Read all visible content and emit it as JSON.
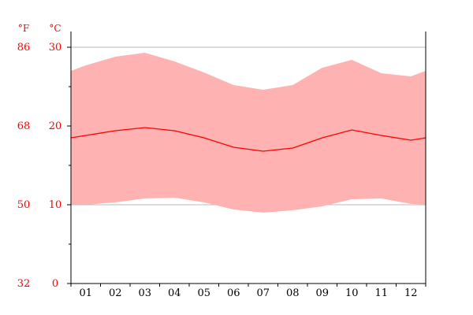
{
  "chart_data": {
    "type": "area",
    "x_categories": [
      "01",
      "02",
      "03",
      "04",
      "05",
      "06",
      "07",
      "08",
      "09",
      "10",
      "11",
      "12"
    ],
    "series": [
      {
        "role": "max",
        "values": [
          27.7,
          28.8,
          29.3,
          28.2,
          26.8,
          25.2,
          24.6,
          25.2,
          27.4,
          28.4,
          26.7,
          26.3
        ]
      },
      {
        "role": "mean",
        "values": [
          18.8,
          19.4,
          19.8,
          19.4,
          18.5,
          17.3,
          16.8,
          17.2,
          18.5,
          19.5,
          18.8,
          18.2
        ]
      },
      {
        "role": "min",
        "values": [
          10.0,
          10.3,
          10.8,
          10.9,
          10.3,
          9.4,
          9.0,
          9.3,
          9.8,
          10.7,
          10.8,
          10.1
        ]
      }
    ],
    "y_axis_left_unit": "°F",
    "y_axis_right_unit": "°C",
    "y_ticks_fahrenheit": [
      "86",
      "68",
      "50",
      "32"
    ],
    "y_ticks_celsius": [
      "30",
      "20",
      "10",
      "0"
    ],
    "ylim_celsius": [
      0,
      30
    ],
    "grid": true,
    "colors": {
      "band_fill": "#ffb2b2",
      "mean_line": "#ff0000",
      "axis_text": "#ff0000",
      "axis_line": "#000000",
      "grid_line": "#bbbbbb"
    }
  }
}
